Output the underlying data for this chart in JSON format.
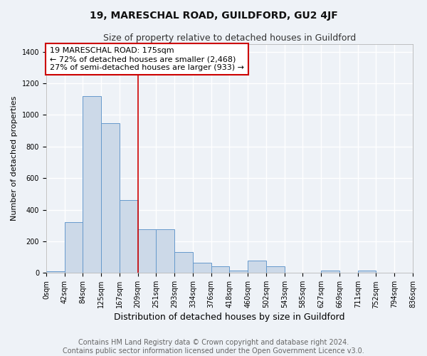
{
  "title": "19, MARESCHAL ROAD, GUILDFORD, GU2 4JF",
  "subtitle": "Size of property relative to detached houses in Guildford",
  "xlabel": "Distribution of detached houses by size in Guildford",
  "ylabel": "Number of detached properties",
  "bin_labels": [
    "0sqm",
    "42sqm",
    "84sqm",
    "125sqm",
    "167sqm",
    "209sqm",
    "251sqm",
    "293sqm",
    "334sqm",
    "376sqm",
    "418sqm",
    "460sqm",
    "502sqm",
    "543sqm",
    "585sqm",
    "627sqm",
    "669sqm",
    "711sqm",
    "752sqm",
    "794sqm",
    "836sqm"
  ],
  "bar_heights": [
    10,
    320,
    1120,
    950,
    460,
    275,
    275,
    130,
    65,
    40,
    15,
    80,
    40,
    0,
    0,
    15,
    0,
    15,
    0,
    0
  ],
  "bar_color": "#ccd9e8",
  "bar_edge_color": "#6699cc",
  "bar_edge_width": 0.7,
  "annotation_box_text": "19 MARESCHAL ROAD: 175sqm\n← 72% of detached houses are smaller (2,468)\n27% of semi-detached houses are larger (933) →",
  "annotation_box_color": "#ffffff",
  "annotation_box_edge_color": "#cc0000",
  "red_line_color": "#cc0000",
  "red_line_x": 5.0,
  "ylim": [
    0,
    1450
  ],
  "yticks": [
    0,
    200,
    400,
    600,
    800,
    1000,
    1200,
    1400
  ],
  "footer_line1": "Contains HM Land Registry data © Crown copyright and database right 2024.",
  "footer_line2": "Contains public sector information licensed under the Open Government Licence v3.0.",
  "background_color": "#eef2f7",
  "plot_background_color": "#eef2f7",
  "grid_color": "#ffffff",
  "title_fontsize": 10,
  "subtitle_fontsize": 9,
  "xlabel_fontsize": 9,
  "ylabel_fontsize": 8,
  "tick_fontsize": 7,
  "annotation_fontsize": 8,
  "footer_fontsize": 7
}
